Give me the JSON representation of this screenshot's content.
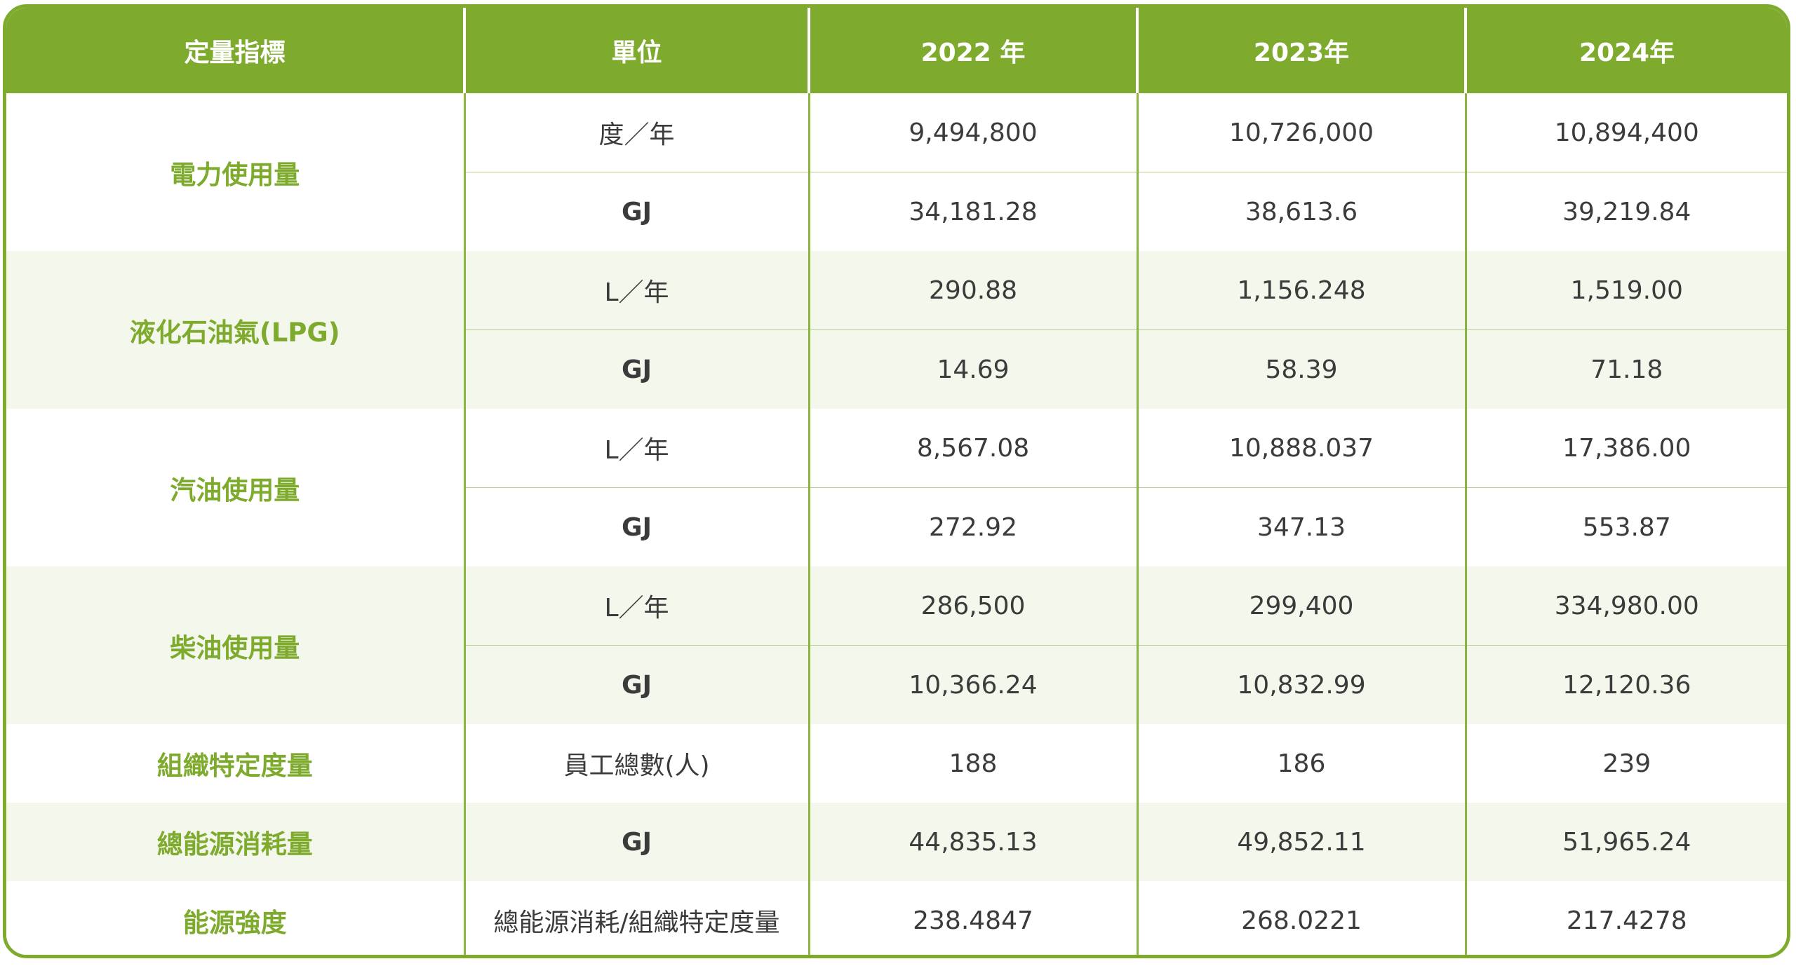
{
  "header": [
    "定量指標",
    "單位",
    "2022 年",
    "2023年",
    "2024年"
  ],
  "groups": [
    {
      "indicator": "電力使用量",
      "rows": [
        {
          "unit": "度／年",
          "values": [
            "9,494,800",
            "10,726,000",
            "10,894,400"
          ]
        },
        {
          "unit": "GJ",
          "values": [
            "34,181.28",
            "38,613.6",
            "39,219.84"
          ]
        }
      ]
    },
    {
      "indicator": "液化石油氣(LPG)",
      "rows": [
        {
          "unit": "L／年",
          "values": [
            "290.88",
            "1,156.248",
            "1,519.00"
          ]
        },
        {
          "unit": "GJ",
          "values": [
            "14.69",
            "58.39",
            "71.18"
          ]
        }
      ]
    },
    {
      "indicator": "汽油使用量",
      "rows": [
        {
          "unit": "L／年",
          "values": [
            "8,567.08",
            "10,888.037",
            "17,386.00"
          ]
        },
        {
          "unit": "GJ",
          "values": [
            "272.92",
            "347.13",
            "553.87"
          ]
        }
      ]
    },
    {
      "indicator": "柴油使用量",
      "rows": [
        {
          "unit": "L／年",
          "values": [
            "286,500",
            "299,400",
            "334,980.00"
          ]
        },
        {
          "unit": "GJ",
          "values": [
            "10,366.24",
            "10,832.99",
            "12,120.36"
          ]
        }
      ]
    },
    {
      "indicator": "組織特定度量",
      "rows": [
        {
          "unit": "員工總數(人)",
          "values": [
            "188",
            "186",
            "239"
          ]
        }
      ]
    },
    {
      "indicator": "總能源消耗量",
      "rows": [
        {
          "unit": "GJ",
          "values": [
            "44,835.13",
            "49,852.11",
            "51,965.24"
          ]
        }
      ]
    },
    {
      "indicator": "能源強度",
      "rows": [
        {
          "unit": "總能源消耗/組織特定度量",
          "values": [
            "238.4847",
            "268.0221",
            "217.4278"
          ]
        }
      ]
    }
  ],
  "colors": {
    "accent": "#7eab2e",
    "shade": "#f3f7ec",
    "text": "#3b3b3b"
  }
}
